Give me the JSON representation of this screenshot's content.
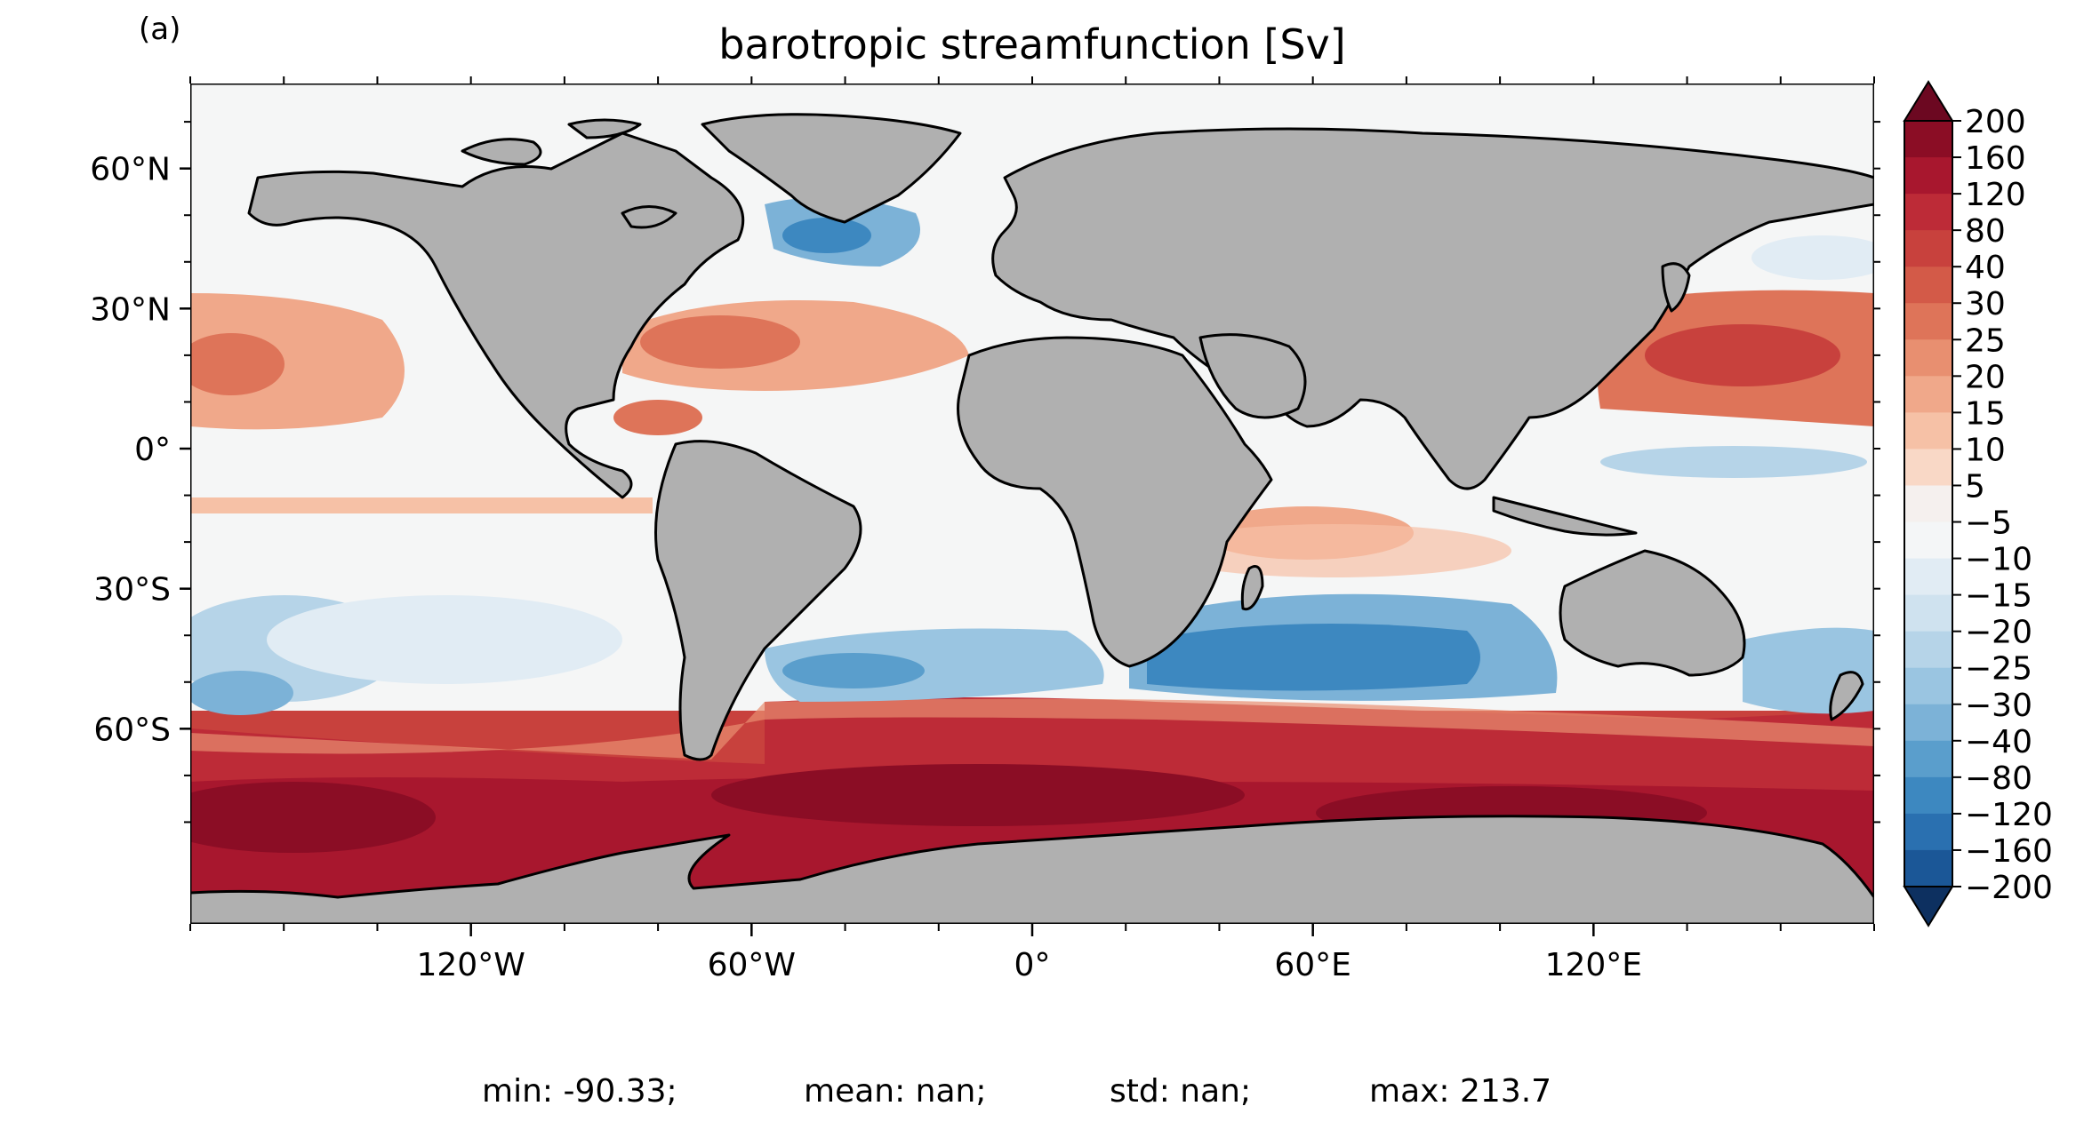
{
  "panel_label": "(a)",
  "title": "barotropic streamfunction [Sv]",
  "lat_ticks": [
    "60°N",
    "30°N",
    "0°",
    "30°S",
    "60°S"
  ],
  "lon_ticks": [
    "120°W",
    "60°W",
    "0°",
    "60°E",
    "120°E"
  ],
  "colorbar": {
    "labels": [
      "200",
      "160",
      "120",
      "80",
      "40",
      "30",
      "25",
      "20",
      "15",
      "10",
      "5",
      "−5",
      "−10",
      "−15",
      "−20",
      "−25",
      "−30",
      "−40",
      "−80",
      "−120",
      "−160",
      "−200"
    ],
    "colors": [
      "#8b0d25",
      "#a8172e",
      "#bd2b37",
      "#c8413d",
      "#d35a48",
      "#de7459",
      "#e88f70",
      "#f0a88a",
      "#f6c1a6",
      "#f9d8c6",
      "#f5f0ee",
      "#f4f6f7",
      "#e1ecf4",
      "#cfe2ef",
      "#b6d4e8",
      "#9ac5e1",
      "#7cb2d7",
      "#5a9ecc",
      "#3d88c0",
      "#2a70b0",
      "#1b5797",
      "#114077"
    ],
    "extend_max_color": "#6c0821",
    "extend_min_color": "#0d3060"
  },
  "map": {
    "land_color": "#b0b0b0",
    "coastline_color": "#000000",
    "ocean_background": "#f5f6f6"
  },
  "stats": {
    "min": "min: -90.33;",
    "mean": "mean: nan;",
    "std": "std: nan;",
    "max": "max: 213.7"
  }
}
